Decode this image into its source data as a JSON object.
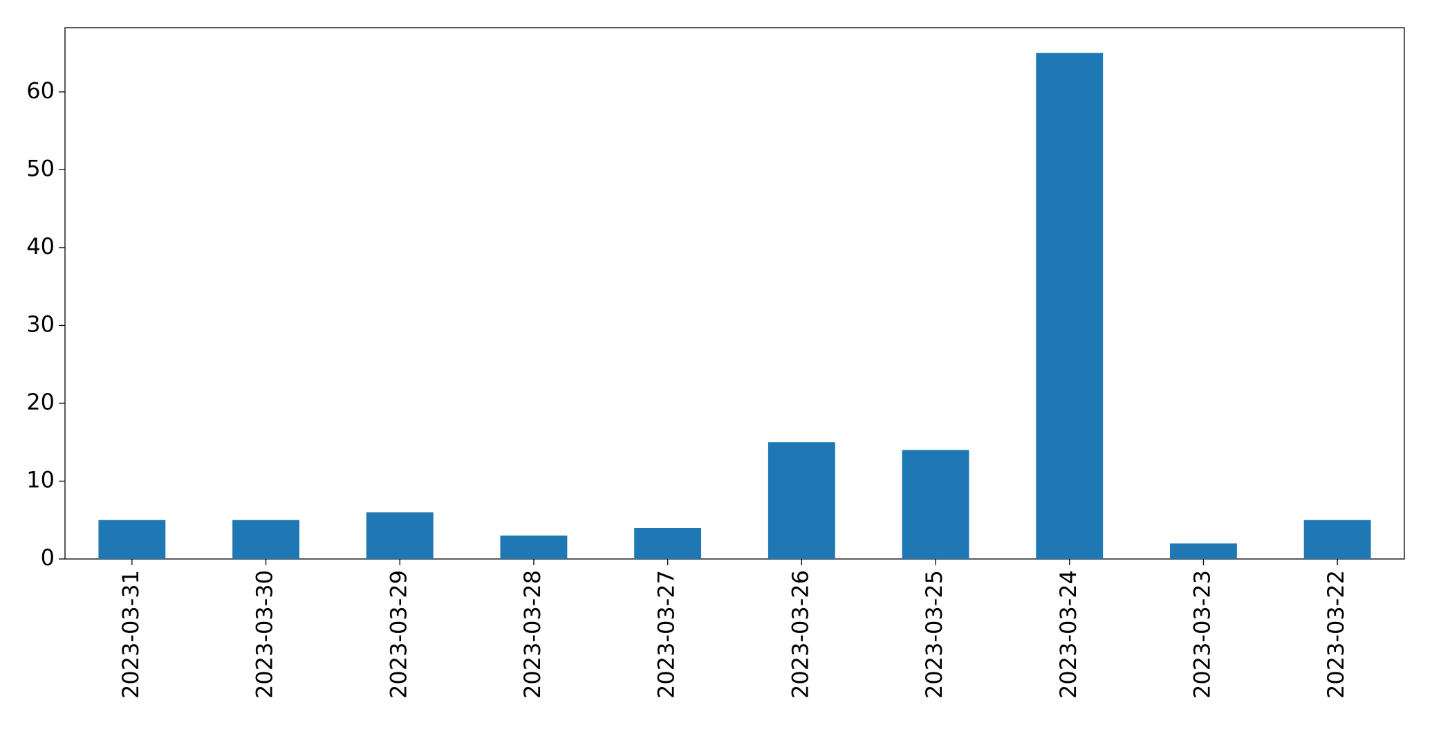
{
  "chart_data": {
    "type": "bar",
    "categories": [
      "2023-03-31",
      "2023-03-30",
      "2023-03-29",
      "2023-03-28",
      "2023-03-27",
      "2023-03-26",
      "2023-03-25",
      "2023-03-24",
      "2023-03-23",
      "2023-03-22"
    ],
    "values": [
      5,
      5,
      6,
      3,
      4,
      15,
      14,
      65,
      2,
      5
    ],
    "color": "#1f77b4",
    "ylim": [
      0,
      68.25
    ],
    "yticks": [
      0,
      10,
      20,
      30,
      40,
      50,
      60
    ],
    "grid": false
  }
}
